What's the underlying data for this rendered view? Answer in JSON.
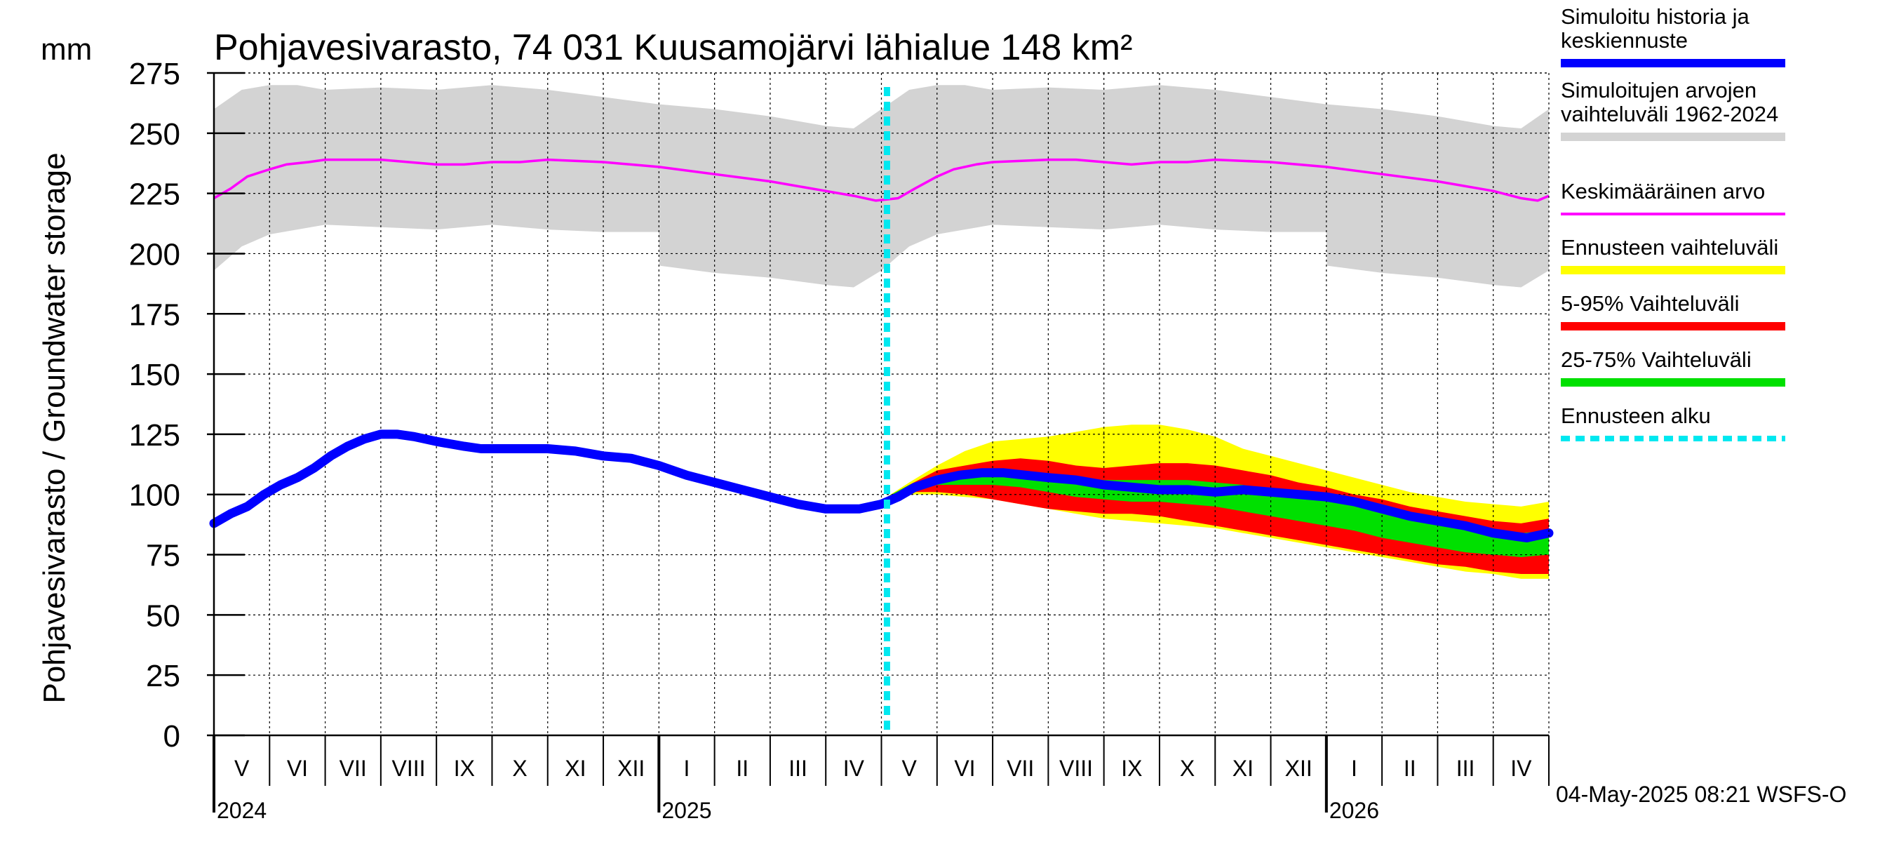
{
  "colors": {
    "history": "#0000ff",
    "range_hist": "#d3d3d3",
    "mean": "#ff00ff",
    "forecast_range": "#ffff00",
    "p5_95": "#ff0000",
    "p25_75": "#00e000",
    "forecast_start": "#00e8f0",
    "grid": "#000000"
  },
  "footer": "04-May-2025 08:21 WSFS-O",
  "chart_data": {
    "type": "area",
    "title": "Pohjavesivarasto, 74 031 Kuusamojärvi lähialue 148 km²",
    "unit_label": "mm",
    "ylabel": "Pohjavesivarasto / Groundwater storage",
    "ylim": [
      0,
      275
    ],
    "yticks": [
      0,
      25,
      50,
      75,
      100,
      125,
      150,
      175,
      200,
      225,
      250,
      275
    ],
    "xlim": [
      0,
      24
    ],
    "months": [
      "V",
      "VI",
      "VII",
      "VIII",
      "IX",
      "X",
      "XI",
      "XII",
      "I",
      "II",
      "III",
      "IV",
      "V",
      "VI",
      "VII",
      "VIII",
      "IX",
      "X",
      "XI",
      "XII",
      "I",
      "II",
      "III",
      "IV"
    ],
    "years": [
      {
        "label": "2024",
        "month_index": 0
      },
      {
        "label": "2025",
        "month_index": 8
      },
      {
        "label": "2026",
        "month_index": 20
      }
    ],
    "forecast_start_month": 12.1,
    "legend": [
      {
        "key": "history",
        "label_lines": [
          "Simuloitu historia ja",
          "keskiennuste"
        ]
      },
      {
        "key": "range_hist",
        "label_lines": [
          "Simuloitujen arvojen",
          "vaihteluväli 1962-2024"
        ]
      },
      {
        "key": "mean",
        "label_lines": [
          "Keskimääräinen arvo"
        ]
      },
      {
        "key": "forecast_range",
        "label_lines": [
          "Ennusteen vaihteluväli"
        ]
      },
      {
        "key": "p5_95",
        "label_lines": [
          "5-95% Vaihteluväli"
        ]
      },
      {
        "key": "p25_75",
        "label_lines": [
          "25-75% Vaihteluväli"
        ]
      },
      {
        "key": "forecast_start",
        "label_lines": [
          "Ennusteen alku"
        ]
      }
    ],
    "history_range": {
      "x": [
        0,
        0.5,
        1,
        1.5,
        2,
        3,
        4,
        5,
        6,
        7,
        8,
        8.01,
        9,
        10,
        11,
        11.5,
        12,
        12.5,
        13,
        13.5,
        14,
        15,
        16,
        17,
        18,
        19,
        20,
        20.01,
        21,
        22,
        23,
        23.5,
        24
      ],
      "lower": [
        193,
        203,
        208,
        210,
        212,
        211,
        210,
        212,
        210,
        209,
        209,
        195,
        192,
        190,
        187,
        186,
        193,
        203,
        208,
        210,
        212,
        211,
        210,
        212,
        210,
        209,
        209,
        195,
        192,
        190,
        187,
        186,
        193
      ],
      "upper": [
        260,
        268,
        270,
        270,
        268,
        269,
        268,
        270,
        268,
        265,
        262,
        262,
        260,
        257,
        253,
        252,
        260,
        268,
        270,
        270,
        268,
        269,
        268,
        270,
        268,
        265,
        262,
        262,
        260,
        257,
        253,
        252,
        260
      ]
    },
    "mean": {
      "x": [
        0,
        0.3,
        0.6,
        1,
        1.3,
        1.7,
        2,
        3,
        3.5,
        4,
        4.5,
        5,
        5.5,
        6,
        7,
        8,
        9,
        10,
        11,
        11.5,
        11.9,
        12.3,
        12.6,
        13,
        13.3,
        13.7,
        14,
        15,
        15.5,
        16,
        16.5,
        17,
        17.5,
        18,
        19,
        20,
        21,
        22,
        23,
        23.5,
        23.8,
        24
      ],
      "values": [
        223,
        227,
        232,
        235,
        237,
        238,
        239,
        239,
        238,
        237,
        237,
        238,
        238,
        239,
        238,
        236,
        233,
        230,
        226,
        224,
        222,
        223,
        227,
        232,
        235,
        237,
        238,
        239,
        239,
        238,
        237,
        238,
        238,
        239,
        238,
        236,
        233,
        230,
        226,
        223,
        222,
        224
      ]
    },
    "history": {
      "x": [
        0,
        0.3,
        0.6,
        0.9,
        1.2,
        1.5,
        1.8,
        2.1,
        2.4,
        2.7,
        3,
        3.3,
        3.6,
        4,
        4.5,
        4.8,
        5,
        5.5,
        6,
        6.5,
        7,
        7.5,
        8,
        8.5,
        9,
        9.5,
        10,
        10.5,
        11,
        11.3,
        11.6,
        12,
        12.3,
        12.6,
        13,
        13.4,
        13.8,
        14.2,
        14.6,
        15,
        15.5,
        16,
        16.5,
        17,
        17.5,
        18,
        18.5,
        19,
        19.5,
        20,
        20.5,
        21,
        21.5,
        22,
        22.5,
        23,
        23.3,
        23.6,
        24
      ],
      "values": [
        88,
        92,
        95,
        100,
        104,
        107,
        111,
        116,
        120,
        123,
        125,
        125,
        124,
        122,
        120,
        119,
        119,
        119,
        119,
        118,
        116,
        115,
        112,
        108,
        105,
        102,
        99,
        96,
        94,
        94,
        94,
        96,
        99,
        103,
        106,
        108,
        109,
        109,
        108,
        107,
        106,
        104,
        103,
        102,
        102,
        101,
        102,
        101,
        100,
        99,
        97,
        94,
        91,
        89,
        87,
        84,
        83,
        82,
        84
      ]
    },
    "forecast_x": [
      12.1,
      12.5,
      13,
      13.5,
      14,
      14.5,
      15,
      15.5,
      16,
      16.5,
      17,
      17.5,
      18,
      18.5,
      19,
      19.5,
      20,
      20.5,
      21,
      21.5,
      22,
      22.5,
      23,
      23.5,
      24
    ],
    "forecast_range": {
      "lower": [
        99,
        100,
        100,
        99,
        98,
        96,
        94,
        92,
        90,
        89,
        88,
        87,
        86,
        84,
        82,
        80,
        78,
        76,
        74,
        72,
        70,
        68,
        67,
        65,
        65
      ],
      "upper": [
        99,
        105,
        112,
        118,
        122,
        123,
        124,
        126,
        128,
        129,
        129,
        127,
        124,
        119,
        116,
        113,
        110,
        107,
        104,
        101,
        99,
        97,
        96,
        95,
        97
      ]
    },
    "p5_95": {
      "lower": [
        99,
        101,
        101,
        100,
        98,
        96,
        94,
        93,
        92,
        92,
        91,
        89,
        87,
        85,
        83,
        81,
        79,
        77,
        75,
        73,
        71,
        70,
        68,
        67,
        67
      ],
      "upper": [
        99,
        104,
        110,
        112,
        114,
        115,
        114,
        112,
        111,
        112,
        113,
        113,
        112,
        110,
        108,
        105,
        103,
        100,
        98,
        95,
        93,
        91,
        89,
        88,
        90
      ]
    },
    "p25_75": {
      "lower": [
        99,
        102,
        104,
        104,
        104,
        103,
        101,
        99,
        98,
        97,
        97,
        96,
        95,
        93,
        91,
        89,
        87,
        85,
        82,
        80,
        78,
        76,
        75,
        74,
        75
      ],
      "upper": [
        99,
        104,
        108,
        109,
        109,
        109,
        108,
        107,
        106,
        106,
        106,
        106,
        105,
        104,
        102,
        100,
        98,
        96,
        93,
        91,
        89,
        87,
        85,
        84,
        85
      ]
    }
  }
}
